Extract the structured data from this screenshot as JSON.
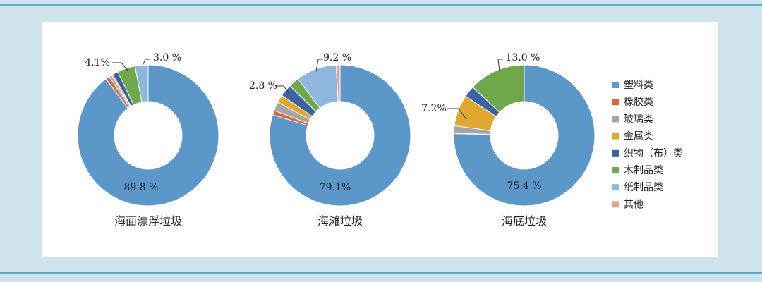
{
  "chart_data": {
    "type": "donut",
    "legend": {
      "placement": "right",
      "items": [
        {
          "label": "塑料类",
          "color": "#5b97c9"
        },
        {
          "label": "橡胶类",
          "color": "#d46a3a"
        },
        {
          "label": "玻璃类",
          "color": "#a5a5a5"
        },
        {
          "label": "金属类",
          "color": "#e0a82e"
        },
        {
          "label": "织物（布）类",
          "color": "#3c62a4"
        },
        {
          "label": "木制品类",
          "color": "#6fa84a"
        },
        {
          "label": "纸制品类",
          "color": "#8fb7de"
        },
        {
          "label": "其他",
          "color": "#e9a298"
        }
      ]
    },
    "charts": [
      {
        "title": "海面漂浮垃圾",
        "values": [
          89.8,
          0.9,
          0.6,
          0.3,
          1.3,
          4.1,
          3.0,
          0.0
        ],
        "labels": [
          {
            "text": "89.8 %",
            "slice": 0
          },
          {
            "text": "4.1%",
            "slice": 5
          },
          {
            "text": "3.0 %",
            "slice": 6
          }
        ]
      },
      {
        "title": "海滩垃圾",
        "values": [
          79.1,
          1.0,
          2.0,
          1.8,
          2.8,
          2.4,
          9.2,
          0.9
        ],
        "labels": [
          {
            "text": "79.1%",
            "slice": 0
          },
          {
            "text": "2.8 %",
            "slice": 4
          },
          {
            "text": "9.2 %",
            "slice": 6
          }
        ]
      },
      {
        "title": "海底垃圾",
        "values": [
          75.4,
          0.1,
          1.7,
          7.2,
          2.6,
          13.0,
          0.0,
          0.0
        ],
        "labels": [
          {
            "text": "75.4 %",
            "slice": 0
          },
          {
            "text": "7.2%",
            "slice": 3
          },
          {
            "text": "13.0 %",
            "slice": 5
          }
        ]
      }
    ]
  }
}
